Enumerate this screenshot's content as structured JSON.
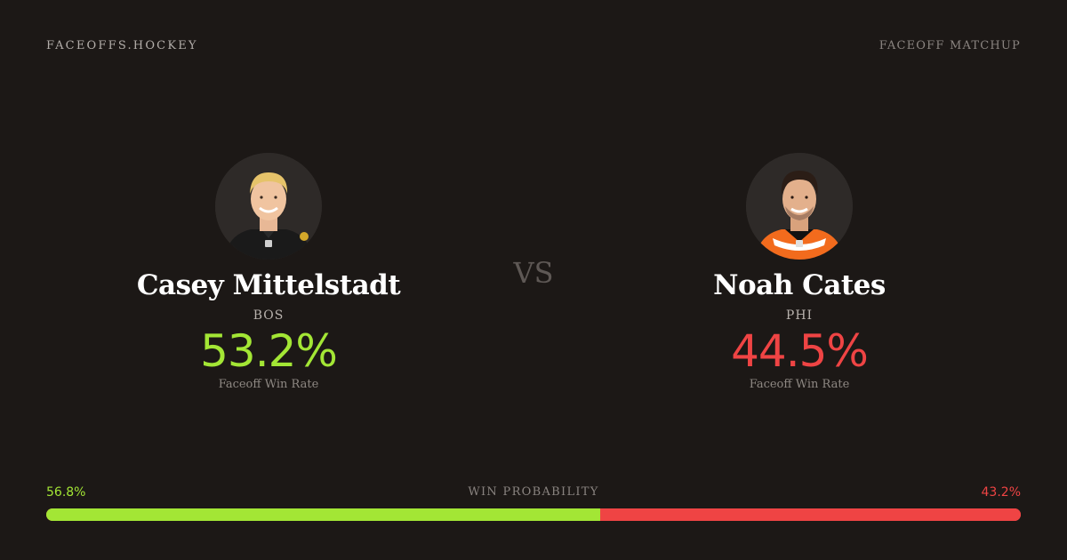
{
  "header": {
    "brand": "FACEOFFS.HOCKEY",
    "label": "FACEOFF MATCHUP"
  },
  "vs": "VS",
  "players": [
    {
      "name": "Casey Mittelstadt",
      "team": "BOS",
      "faceoff_win_rate": "53.2%",
      "rate_label": "Faceoff Win Rate",
      "rate_color": "#a3e635",
      "avatar_icon": "player-headshot-icon"
    },
    {
      "name": "Noah Cates",
      "team": "PHI",
      "faceoff_win_rate": "44.5%",
      "rate_label": "Faceoff Win Rate",
      "rate_color": "#ef4444",
      "avatar_icon": "player-headshot-icon"
    }
  ],
  "win_probability": {
    "title": "WIN PROBABILITY",
    "left_label": "56.8%",
    "right_label": "43.2%",
    "left_value": 56.8,
    "right_value": 43.2,
    "left_color": "#a3e635",
    "right_color": "#ef4444"
  }
}
